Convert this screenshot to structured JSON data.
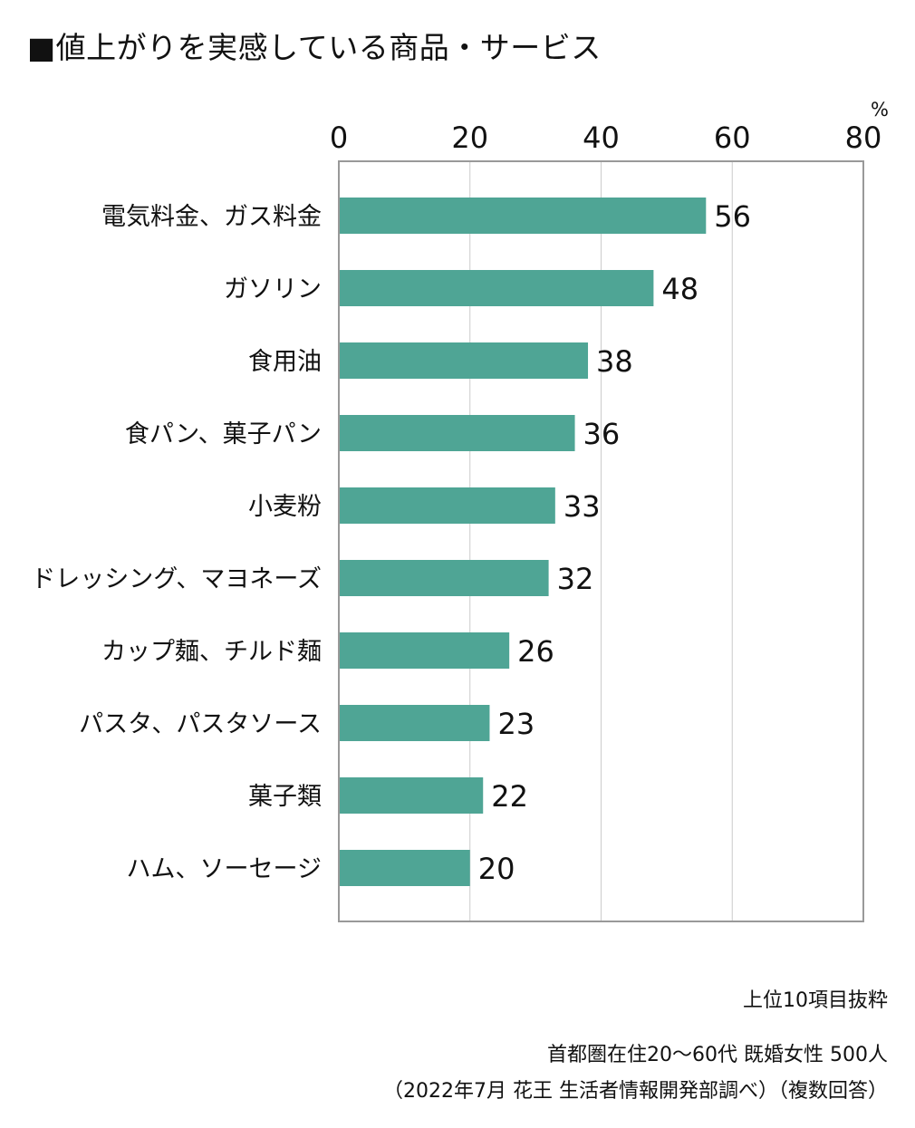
{
  "chart_data": {
    "type": "bar",
    "orientation": "horizontal",
    "title": "■値上がりを実感している商品・サービス",
    "unit": "%",
    "xlim": [
      0,
      80
    ],
    "ticks": [
      "0",
      "20",
      "40",
      "60",
      "80"
    ],
    "grid": true,
    "categories": [
      "電気料金、ガス料金",
      "ガソリン",
      "食用油",
      "食パン、菓子パン",
      "小麦粉",
      "ドレッシング、マヨネーズ",
      "カップ麺、チルド麺",
      "パスタ、パスタソース",
      "菓子類",
      "ハム、ソーセージ"
    ],
    "values": [
      56,
      48,
      38,
      36,
      33,
      32,
      26,
      23,
      22,
      20
    ],
    "bar_color": "#4fa595",
    "gridline_color": "#cccccc",
    "axis_color": "#999999"
  },
  "notes": {
    "top10": "上位10項目抜粋",
    "sample": "首都圏在住20～60代 既婚女性 500人",
    "source": "（2022年7月 花王 生活者情報開発部調べ）（複数回答）"
  }
}
